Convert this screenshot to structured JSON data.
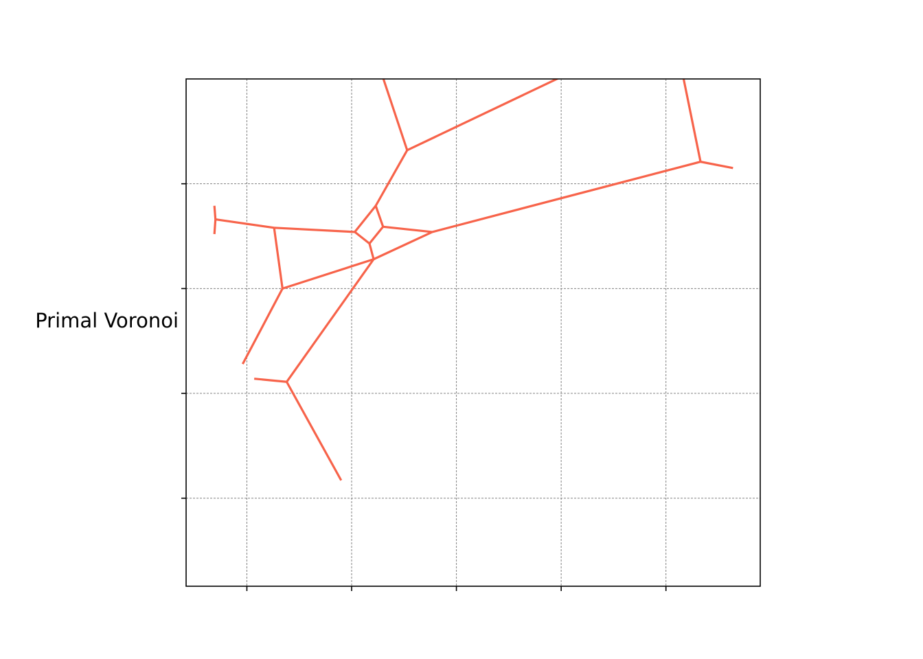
{
  "figure": {
    "ylabel": "Primal Voronoi",
    "grid": true,
    "tick_labels_shown": false,
    "colors": {
      "edge": "#f7634a",
      "grid": "#808080",
      "axes": "#000000"
    }
  },
  "chart_data": {
    "type": "line",
    "xlim": [
      -0.58,
      4.9
    ],
    "ylim": [
      -0.84,
      4.0
    ],
    "xticks": [
      0,
      1,
      2,
      3,
      4
    ],
    "yticks": [
      0,
      1,
      2,
      3
    ],
    "edges": [
      [
        [
          -0.3,
          2.66
        ],
        [
          0.26,
          2.58
        ]
      ],
      [
        [
          0.26,
          2.58
        ],
        [
          1.03,
          2.54
        ]
      ],
      [
        [
          1.03,
          2.54
        ],
        [
          1.23,
          2.79
        ]
      ],
      [
        [
          1.23,
          2.79
        ],
        [
          1.3,
          2.59
        ]
      ],
      [
        [
          1.3,
          2.59
        ],
        [
          1.77,
          2.54
        ]
      ],
      [
        [
          1.03,
          2.54
        ],
        [
          1.17,
          2.43
        ]
      ],
      [
        [
          1.17,
          2.43
        ],
        [
          1.3,
          2.59
        ]
      ],
      [
        [
          1.17,
          2.43
        ],
        [
          1.21,
          2.28
        ]
      ],
      [
        [
          1.21,
          2.28
        ],
        [
          1.77,
          2.54
        ]
      ],
      [
        [
          1.77,
          2.54
        ],
        [
          4.33,
          3.21
        ]
      ],
      [
        [
          4.33,
          3.21
        ],
        [
          4.64,
          3.15
        ]
      ],
      [
        [
          4.33,
          3.21
        ],
        [
          4.13,
          4.19
        ]
      ],
      [
        [
          1.23,
          2.79
        ],
        [
          1.53,
          3.32
        ]
      ],
      [
        [
          1.53,
          3.32
        ],
        [
          1.24,
          4.19
        ]
      ],
      [
        [
          1.53,
          3.32
        ],
        [
          3.4,
          4.21
        ]
      ],
      [
        [
          -0.3,
          2.66
        ],
        [
          -0.31,
          2.79
        ]
      ],
      [
        [
          -0.3,
          2.66
        ],
        [
          -0.31,
          2.52
        ]
      ],
      [
        [
          0.26,
          2.58
        ],
        [
          0.34,
          2.0
        ]
      ],
      [
        [
          0.34,
          2.0
        ],
        [
          1.21,
          2.28
        ]
      ],
      [
        [
          0.34,
          2.0
        ],
        [
          -0.04,
          1.28
        ]
      ],
      [
        [
          1.21,
          2.28
        ],
        [
          0.38,
          1.11
        ]
      ],
      [
        [
          0.38,
          1.11
        ],
        [
          0.07,
          1.14
        ]
      ],
      [
        [
          0.38,
          1.11
        ],
        [
          0.9,
          0.17
        ]
      ]
    ],
    "plot_window": {
      "xmin": -0.58,
      "xmax": 4.9,
      "ymin": -0.84,
      "ymax": 4.0
    }
  }
}
